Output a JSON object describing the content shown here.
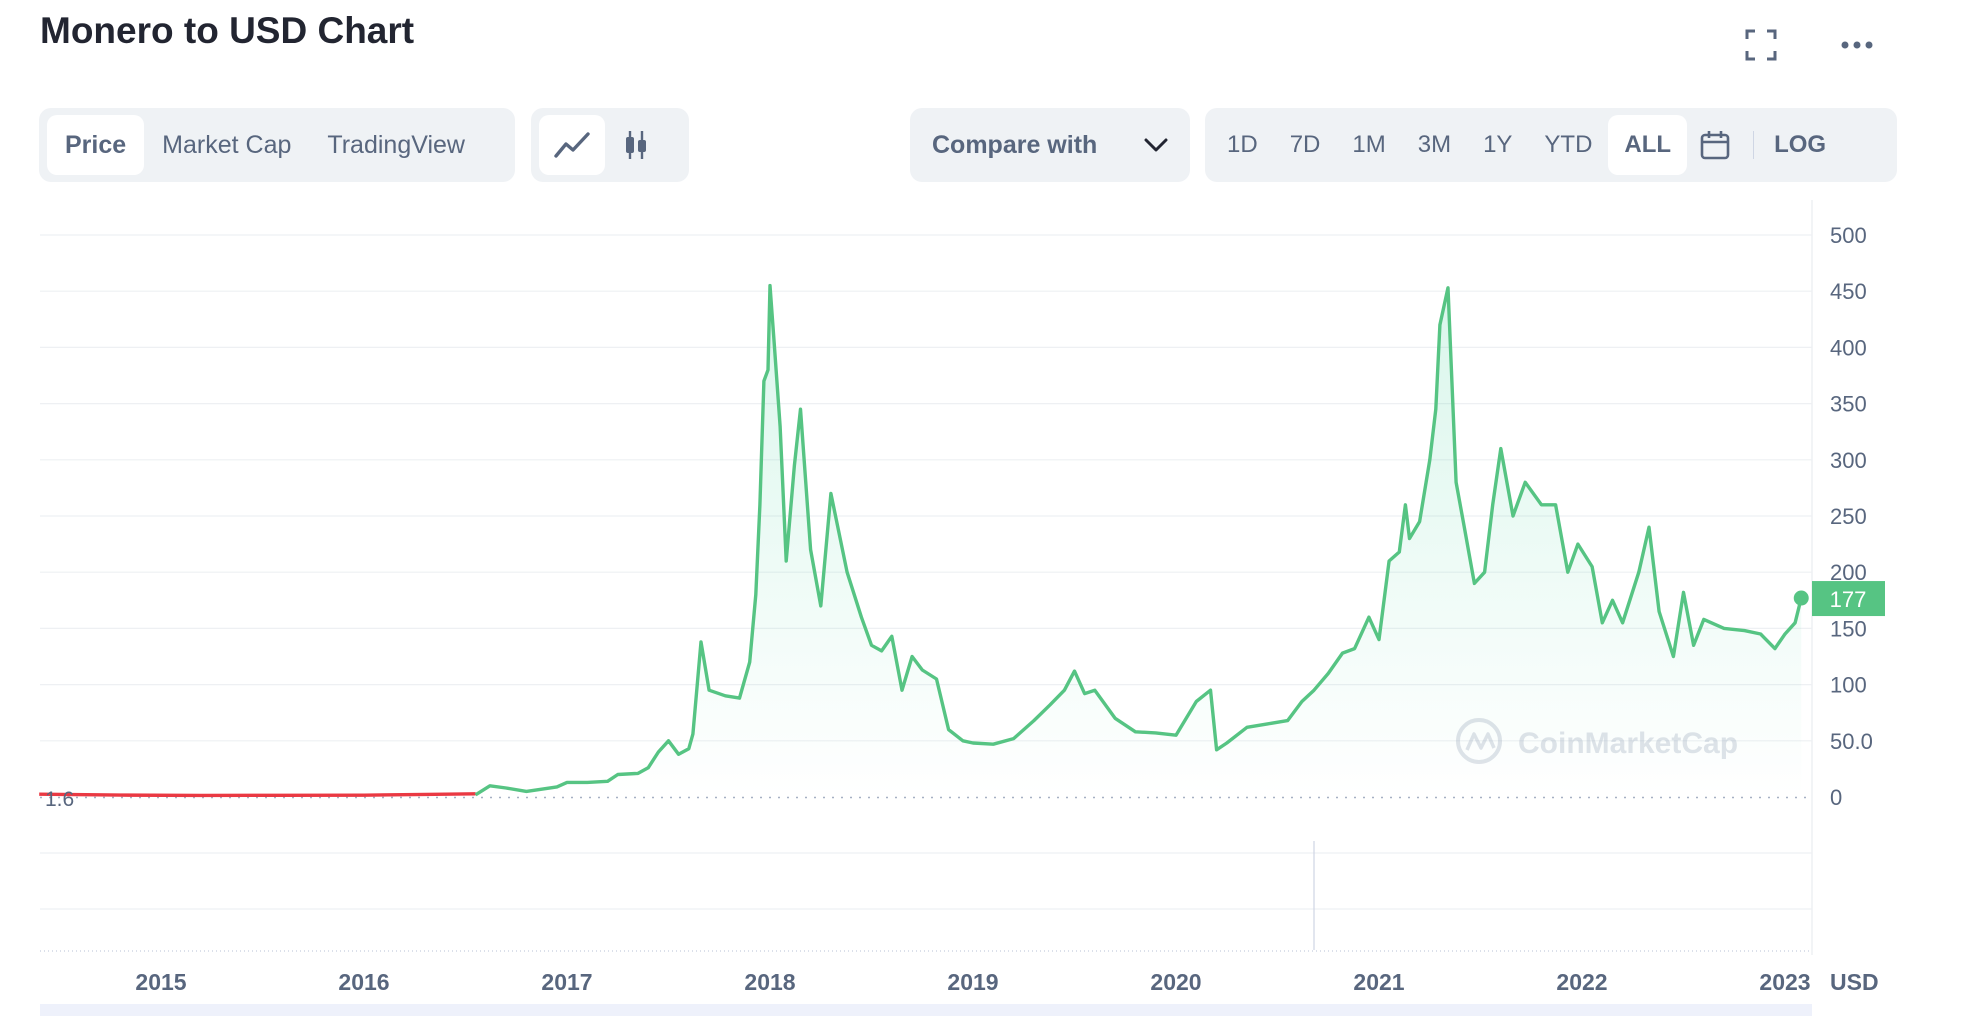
{
  "header": {
    "title": "Monero to USD Chart"
  },
  "toolbar": {
    "tabs": [
      {
        "label": "Price"
      },
      {
        "label": "Market Cap"
      },
      {
        "label": "TradingView"
      }
    ],
    "chart_types": [
      "line-chart-icon",
      "candlestick-icon"
    ],
    "compare": {
      "label": "Compare with"
    },
    "ranges": [
      {
        "label": "1D"
      },
      {
        "label": "7D"
      },
      {
        "label": "1M"
      },
      {
        "label": "3M"
      },
      {
        "label": "1Y"
      },
      {
        "label": "YTD"
      },
      {
        "label": "ALL"
      }
    ],
    "log_label": "LOG"
  },
  "colors": {
    "up": "#16c784",
    "line": "#56c483",
    "down": "#ea3943",
    "grid": "#eef0f3",
    "axis_text": "#58667e"
  },
  "watermark": "CoinMarketCap",
  "chart_data": {
    "type": "area",
    "ylim": [
      0,
      500
    ],
    "y_ticks": [
      "500",
      "450",
      "400",
      "350",
      "300",
      "250",
      "200",
      "150",
      "100",
      "50.0",
      "0"
    ],
    "y_tick_values": [
      500,
      450,
      400,
      350,
      300,
      250,
      200,
      150,
      100,
      50,
      0
    ],
    "x_ticks": [
      "2015",
      "2016",
      "2017",
      "2018",
      "2019",
      "2020",
      "2021",
      "2022",
      "2023"
    ],
    "x_tick_values": [
      2015,
      2016,
      2017,
      2018,
      2019,
      2020,
      2021,
      2022,
      2023
    ],
    "currency": "USD",
    "current_price": "177",
    "start_label": "1.6",
    "grid": true,
    "series": [
      {
        "values": [
          [
            2014.4,
            1.6
          ],
          [
            2014.8,
            0.8
          ],
          [
            2015.2,
            0.5
          ],
          [
            2015.6,
            0.6
          ],
          [
            2016.0,
            0.7
          ],
          [
            2016.3,
            1.4
          ],
          [
            2016.55,
            2.0
          ],
          [
            2016.62,
            10
          ],
          [
            2016.7,
            8
          ],
          [
            2016.8,
            5
          ],
          [
            2016.95,
            9
          ],
          [
            2017.0,
            13
          ],
          [
            2017.1,
            13
          ],
          [
            2017.2,
            14
          ],
          [
            2017.25,
            20
          ],
          [
            2017.35,
            21
          ],
          [
            2017.4,
            26
          ],
          [
            2017.45,
            40
          ],
          [
            2017.5,
            50
          ],
          [
            2017.55,
            38
          ],
          [
            2017.6,
            43
          ],
          [
            2017.62,
            56
          ],
          [
            2017.66,
            138
          ],
          [
            2017.7,
            95
          ],
          [
            2017.78,
            90
          ],
          [
            2017.85,
            88
          ],
          [
            2017.9,
            120
          ],
          [
            2017.93,
            180
          ],
          [
            2017.95,
            260
          ],
          [
            2017.97,
            370
          ],
          [
            2017.99,
            380
          ],
          [
            2018.0,
            455
          ],
          [
            2018.02,
            405
          ],
          [
            2018.05,
            330
          ],
          [
            2018.08,
            210
          ],
          [
            2018.12,
            295
          ],
          [
            2018.15,
            345
          ],
          [
            2018.2,
            220
          ],
          [
            2018.25,
            170
          ],
          [
            2018.3,
            270
          ],
          [
            2018.38,
            200
          ],
          [
            2018.45,
            160
          ],
          [
            2018.5,
            135
          ],
          [
            2018.55,
            130
          ],
          [
            2018.6,
            143
          ],
          [
            2018.65,
            95
          ],
          [
            2018.7,
            125
          ],
          [
            2018.75,
            113
          ],
          [
            2018.82,
            105
          ],
          [
            2018.88,
            60
          ],
          [
            2018.95,
            50
          ],
          [
            2019.0,
            48
          ],
          [
            2019.1,
            47
          ],
          [
            2019.2,
            52
          ],
          [
            2019.3,
            68
          ],
          [
            2019.38,
            82
          ],
          [
            2019.45,
            95
          ],
          [
            2019.5,
            112
          ],
          [
            2019.55,
            92
          ],
          [
            2019.6,
            95
          ],
          [
            2019.7,
            70
          ],
          [
            2019.8,
            58
          ],
          [
            2019.9,
            57
          ],
          [
            2020.0,
            55
          ],
          [
            2020.1,
            85
          ],
          [
            2020.17,
            95
          ],
          [
            2020.2,
            42
          ],
          [
            2020.25,
            48
          ],
          [
            2020.35,
            62
          ],
          [
            2020.45,
            65
          ],
          [
            2020.55,
            68
          ],
          [
            2020.62,
            85
          ],
          [
            2020.68,
            95
          ],
          [
            2020.75,
            110
          ],
          [
            2020.82,
            128
          ],
          [
            2020.88,
            132
          ],
          [
            2020.95,
            160
          ],
          [
            2021.0,
            140
          ],
          [
            2021.05,
            210
          ],
          [
            2021.1,
            218
          ],
          [
            2021.13,
            260
          ],
          [
            2021.15,
            230
          ],
          [
            2021.2,
            245
          ],
          [
            2021.25,
            300
          ],
          [
            2021.28,
            345
          ],
          [
            2021.3,
            420
          ],
          [
            2021.34,
            453
          ],
          [
            2021.38,
            280
          ],
          [
            2021.42,
            240
          ],
          [
            2021.47,
            190
          ],
          [
            2021.52,
            200
          ],
          [
            2021.56,
            260
          ],
          [
            2021.6,
            310
          ],
          [
            2021.66,
            250
          ],
          [
            2021.72,
            280
          ],
          [
            2021.8,
            260
          ],
          [
            2021.87,
            260
          ],
          [
            2021.93,
            200
          ],
          [
            2021.98,
            225
          ],
          [
            2022.05,
            205
          ],
          [
            2022.1,
            155
          ],
          [
            2022.15,
            175
          ],
          [
            2022.2,
            155
          ],
          [
            2022.28,
            200
          ],
          [
            2022.33,
            240
          ],
          [
            2022.38,
            165
          ],
          [
            2022.45,
            125
          ],
          [
            2022.5,
            182
          ],
          [
            2022.55,
            135
          ],
          [
            2022.6,
            158
          ],
          [
            2022.7,
            150
          ],
          [
            2022.8,
            148
          ],
          [
            2022.88,
            145
          ],
          [
            2022.95,
            132
          ],
          [
            2023.0,
            145
          ],
          [
            2023.05,
            155
          ],
          [
            2023.08,
            177
          ]
        ]
      }
    ]
  }
}
